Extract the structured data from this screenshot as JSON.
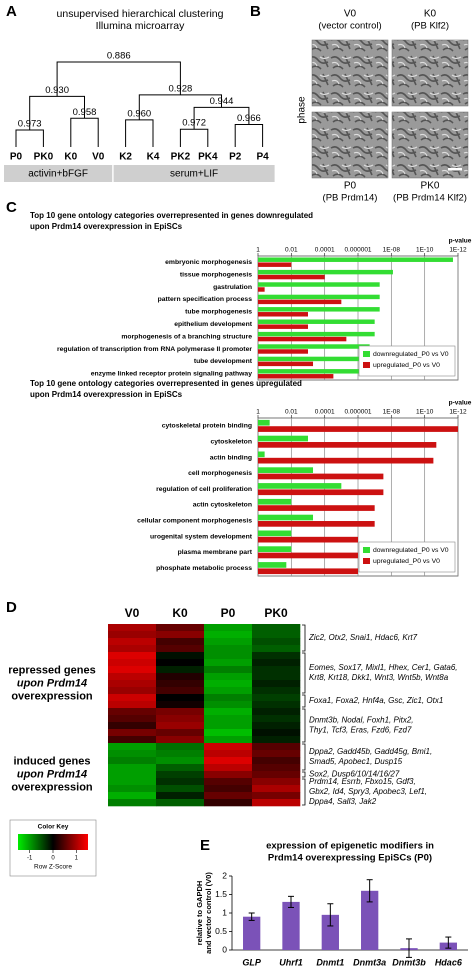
{
  "chart_data": [
    {
      "type": "dendrogram",
      "panel": "A",
      "title": [
        "unsupervised hierarchical clustering",
        "Illumina microarray"
      ],
      "leaves": [
        "P0",
        "PK0",
        "K0",
        "V0",
        "K2",
        "K4",
        "PK2",
        "PK4",
        "P2",
        "P4"
      ],
      "values": [
        0.973,
        0.958,
        0.93,
        0.96,
        0.972,
        0.966,
        0.944,
        0.928,
        0.886
      ],
      "value_labels": [
        "0.973",
        "0.958",
        "0.930",
        "0.960",
        "0.972",
        "0.966",
        "0.944",
        "0.928",
        "0.886"
      ],
      "groups": [
        "activin+bFGF",
        "serum+LIF"
      ]
    },
    {
      "type": "images",
      "panel": "B",
      "side_label": "phase",
      "images": [
        {
          "name": "V0",
          "caption": "(vector control)"
        },
        {
          "name": "K0",
          "caption": "(PB Klf2)"
        },
        {
          "name": "P0",
          "caption": "(PB Prdm14)"
        },
        {
          "name": "PK0",
          "caption": "(PB Prdm14 Klf2)"
        }
      ]
    },
    {
      "type": "bar",
      "panel": "C",
      "orientation": "horizontal",
      "title": [
        "Top 10 gene ontology categories overrepresented in genes downregulated",
        "upon Prdm14 overexpression in EpiSCs"
      ],
      "axis_label": "p-value",
      "log_scale": true,
      "grid": true,
      "legend": "lower right",
      "xlim": [
        1,
        1e-12
      ],
      "xticks": [
        1,
        0.01,
        0.0001,
        1e-06,
        {
          "value": 1e-08,
          "label": "1E-08"
        },
        {
          "value": 1e-10,
          "label": "1E-10"
        },
        {
          "value": 1e-12,
          "label": "1E-12"
        }
      ],
      "categories": [
        "embryonic morphogenesis",
        "tissue morphogenesis",
        "gastrulation",
        "pattern specification process",
        "tube morphogenesis",
        "epithelium development",
        "morphogenesis of a branching structure",
        "regulation of transcription from RNA polymerase II promoter",
        "tube development",
        "enzyme linked receptor protein signaling pathway"
      ],
      "series": [
        {
          "name": "downregulated_P0 vs V0",
          "color": "#33dd33",
          "values": [
            2e-12,
            8e-09,
            5e-08,
            5e-08,
            5e-08,
            1e-07,
            1e-07,
            2e-07,
            2e-07,
            2e-07
          ]
        },
        {
          "name": "upregulated_P0 vs V0",
          "color": "#cc1111",
          "values": [
            0.01,
            0.0001,
            0.4,
            1e-05,
            0.001,
            0.001,
            5e-06,
            0.001,
            0.0005,
            3e-05
          ]
        }
      ]
    },
    {
      "type": "bar",
      "orientation": "horizontal",
      "title": [
        "Top 10 gene ontology categories overrepresented in genes upregulated",
        "upon Prdm14 overexpression in EpiSCs"
      ],
      "axis_label": "p-value",
      "log_scale": true,
      "grid": true,
      "legend": "lower right",
      "xlim": [
        1,
        1e-12
      ],
      "xticks": [
        1,
        0.01,
        0.0001,
        1e-06,
        {
          "value": 1e-08,
          "label": "1E-08"
        },
        {
          "value": 1e-10,
          "label": "1E-10"
        },
        {
          "value": 1e-12,
          "label": "1E-12"
        }
      ],
      "categories": [
        "cytoskeletal protein binding",
        "cytoskeleton",
        "actin binding",
        "cell morphogenesis",
        "regulation of cell proliferation",
        "actin cytoskeleton",
        "cellular component morphogenesis",
        "urogenital system development",
        "plasma membrane part",
        "phosphate metabolic process"
      ],
      "series": [
        {
          "name": "downregulated_P0 vs V0",
          "color": "#33dd33",
          "values": [
            0.2,
            0.001,
            0.4,
            0.0005,
            1e-05,
            0.01,
            0.0005,
            0.01,
            0.01,
            0.02
          ]
        },
        {
          "name": "upregulated_P0 vs V0",
          "color": "#cc1111",
          "values": [
            1e-12,
            2e-11,
            3e-11,
            3e-08,
            3e-08,
            1e-07,
            1e-07,
            1e-06,
            1e-06,
            1e-06
          ]
        }
      ]
    },
    {
      "type": "heatmap",
      "panel": "D",
      "columns": [
        "V0",
        "K0",
        "P0",
        "PK0"
      ],
      "colors": [
        "#00ee00",
        "#000000",
        "#ff0000"
      ],
      "rows": [
        [
          1,
          0.6,
          -1,
          -0.6
        ],
        [
          0.9,
          0.8,
          -1.1,
          -0.6
        ],
        [
          1.1,
          0.4,
          -1,
          -0.5
        ],
        [
          1,
          0.5,
          -0.9,
          -0.6
        ],
        [
          1.3,
          -0.1,
          -0.9,
          -0.3
        ],
        [
          1.2,
          0,
          -1,
          -0.2
        ],
        [
          1.3,
          -0.2,
          -0.8,
          -0.3
        ],
        [
          1.1,
          0.2,
          -1,
          -0.3
        ],
        [
          1,
          0.3,
          -1.1,
          -0.2
        ],
        [
          0.9,
          0.4,
          -1,
          -0.3
        ],
        [
          1.2,
          0,
          -0.8,
          -0.4
        ],
        [
          1.1,
          0.1,
          -0.9,
          -0.3
        ],
        [
          0.6,
          0.7,
          -1.1,
          -0.2
        ],
        [
          0.5,
          0.8,
          -1,
          -0.3
        ],
        [
          0.3,
          0.9,
          -1,
          -0.2
        ],
        [
          0.7,
          0.6,
          -1.2,
          -0.1
        ],
        [
          0.4,
          0.8,
          -1,
          -0.2
        ],
        [
          -1,
          -0.7,
          1.2,
          0.5
        ],
        [
          -0.9,
          -0.8,
          1.1,
          0.6
        ],
        [
          -0.8,
          -0.9,
          1.3,
          0.4
        ],
        [
          -1,
          -0.6,
          1.1,
          0.5
        ],
        [
          -1,
          -0.4,
          0.8,
          0.6
        ],
        [
          -1,
          -0.3,
          0.5,
          0.8
        ],
        [
          -0.9,
          -0.5,
          0.4,
          1
        ],
        [
          -1.1,
          -0.2,
          0.6,
          0.7
        ],
        [
          -0.8,
          -0.6,
          0.3,
          1.1
        ]
      ],
      "groups": [
        [
          "repressed genes",
          "upon Prdm14",
          "overexpression"
        ],
        [
          "induced genes",
          "upon Prdm14",
          "overexpression"
        ]
      ],
      "gene_sets": [
        [
          "Zic2, Otx2, Snai1, Hdac6, Krt7"
        ],
        [
          "Eomes, Sox17, Mixl1, Hhex, Cer1, Gata6,",
          "Krt8, Krt18, Dkk1, Wnt3, Wnt5b, Wnt8a"
        ],
        [
          "Foxa1, Foxa2, Hnf4a, Gsc, Zic1, Otx1"
        ],
        [
          "Dnmt3b, Nodal, Foxh1, Pitx2,",
          "Thy1, Tcf3, Eras, Fzd6, Fzd7"
        ],
        [
          "Dppa2, Gadd45b, Gadd45g, Bmi1,",
          "Smad5, Apobec1, Dusp15"
        ],
        [
          "Sox2, Dusp6/10/14/16/27"
        ],
        [
          "Prdm14, Esrrb, Fbxo15, Gdf3,",
          "Gbx2, Id4, Spry3, Apobec3, Lef1,",
          "Dppa4, Sall3, Jak2"
        ]
      ],
      "color_key": {
        "title": "Color Key",
        "label": "Row Z-Score",
        "lim": [
          -1.5,
          1.5
        ],
        "ticks": [
          -1,
          0,
          1
        ]
      }
    },
    {
      "type": "bar",
      "panel": "E",
      "title": [
        "expression of epigenetic modifiers in",
        "Prdm14 overexpressing EpiSCs (P0)"
      ],
      "ylabel": [
        "relative to GAPDH",
        "and vector control (V0)"
      ],
      "categories": [
        "GLP",
        "Uhrf1",
        "Dnmt1",
        "Dnmt3a",
        "Dnmt3b",
        "Hdac6"
      ],
      "values": [
        0.9,
        1.3,
        0.95,
        1.6,
        0.05,
        0.2
      ],
      "errors": [
        0.1,
        0.15,
        0.3,
        0.3,
        0.25,
        0.15
      ],
      "color": "#7b52b8",
      "ylim": [
        0,
        2
      ],
      "yticks": [
        0,
        0.5,
        1,
        1.5,
        2
      ]
    }
  ]
}
